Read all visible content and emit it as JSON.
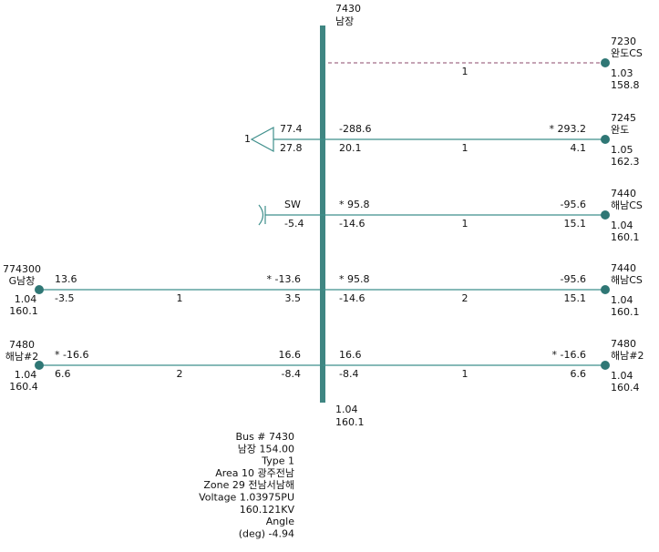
{
  "bus": {
    "number": "7430",
    "name": "남장",
    "voltage": "1.04",
    "angle": "160.1"
  },
  "load": {
    "label": "1",
    "p": "77.4",
    "q": "27.8"
  },
  "shunt": {
    "label": "SW",
    "q": "-5.4"
  },
  "right_branches": [
    {
      "bus": {
        "number": "7230",
        "name": "완도CS",
        "voltage": "1.03",
        "angle": "158.8"
      },
      "circuit": "1"
    },
    {
      "bus": {
        "number": "7245",
        "name": "완도",
        "voltage": "1.05",
        "angle": "162.3"
      },
      "near": [
        "-288.6",
        "20.1"
      ],
      "circuit": "1",
      "far": [
        "* 293.2",
        "4.1"
      ]
    },
    {
      "bus": {
        "number": "7440",
        "name": "해남CS",
        "voltage": "1.04",
        "angle": "160.1"
      },
      "near": [
        "* 95.8",
        "-14.6"
      ],
      "circuit": "1",
      "far": [
        "-95.6",
        "15.1"
      ]
    },
    {
      "bus": {
        "number": "7440",
        "name": "해남CS",
        "voltage": "1.04",
        "angle": "160.1"
      },
      "near": [
        "* 95.8",
        "-14.6"
      ],
      "circuit": "2",
      "far": [
        "-95.6",
        "15.1"
      ]
    },
    {
      "bus": {
        "number": "7480",
        "name": "해남#2",
        "voltage": "1.04",
        "angle": "160.4"
      },
      "near": [
        "16.6",
        "-8.4"
      ],
      "circuit": "1",
      "far": [
        "* -16.6",
        "6.6"
      ]
    }
  ],
  "left_branches": [
    {
      "bus": {
        "number": "774300",
        "name": "G남창",
        "voltage": "1.04",
        "angle": "160.1"
      },
      "near": [
        "* -13.6",
        "3.5"
      ],
      "circuit": "1",
      "far": [
        "13.6",
        "-3.5"
      ]
    },
    {
      "bus": {
        "number": "7480",
        "name": "해남#2",
        "voltage": "1.04",
        "angle": "160.4"
      },
      "near": [
        "16.6",
        "-8.4"
      ],
      "circuit": "2",
      "far": [
        "* -16.6",
        "6.6"
      ]
    }
  ],
  "info": [
    "Bus  # 7430",
    "남장         154.00",
    "Type  1",
    "Area  10 광주전남",
    "Zone  29 전남서남해",
    "Voltage  1.03975PU",
    "160.121KV",
    "Angle",
    "(deg)  -4.94"
  ]
}
